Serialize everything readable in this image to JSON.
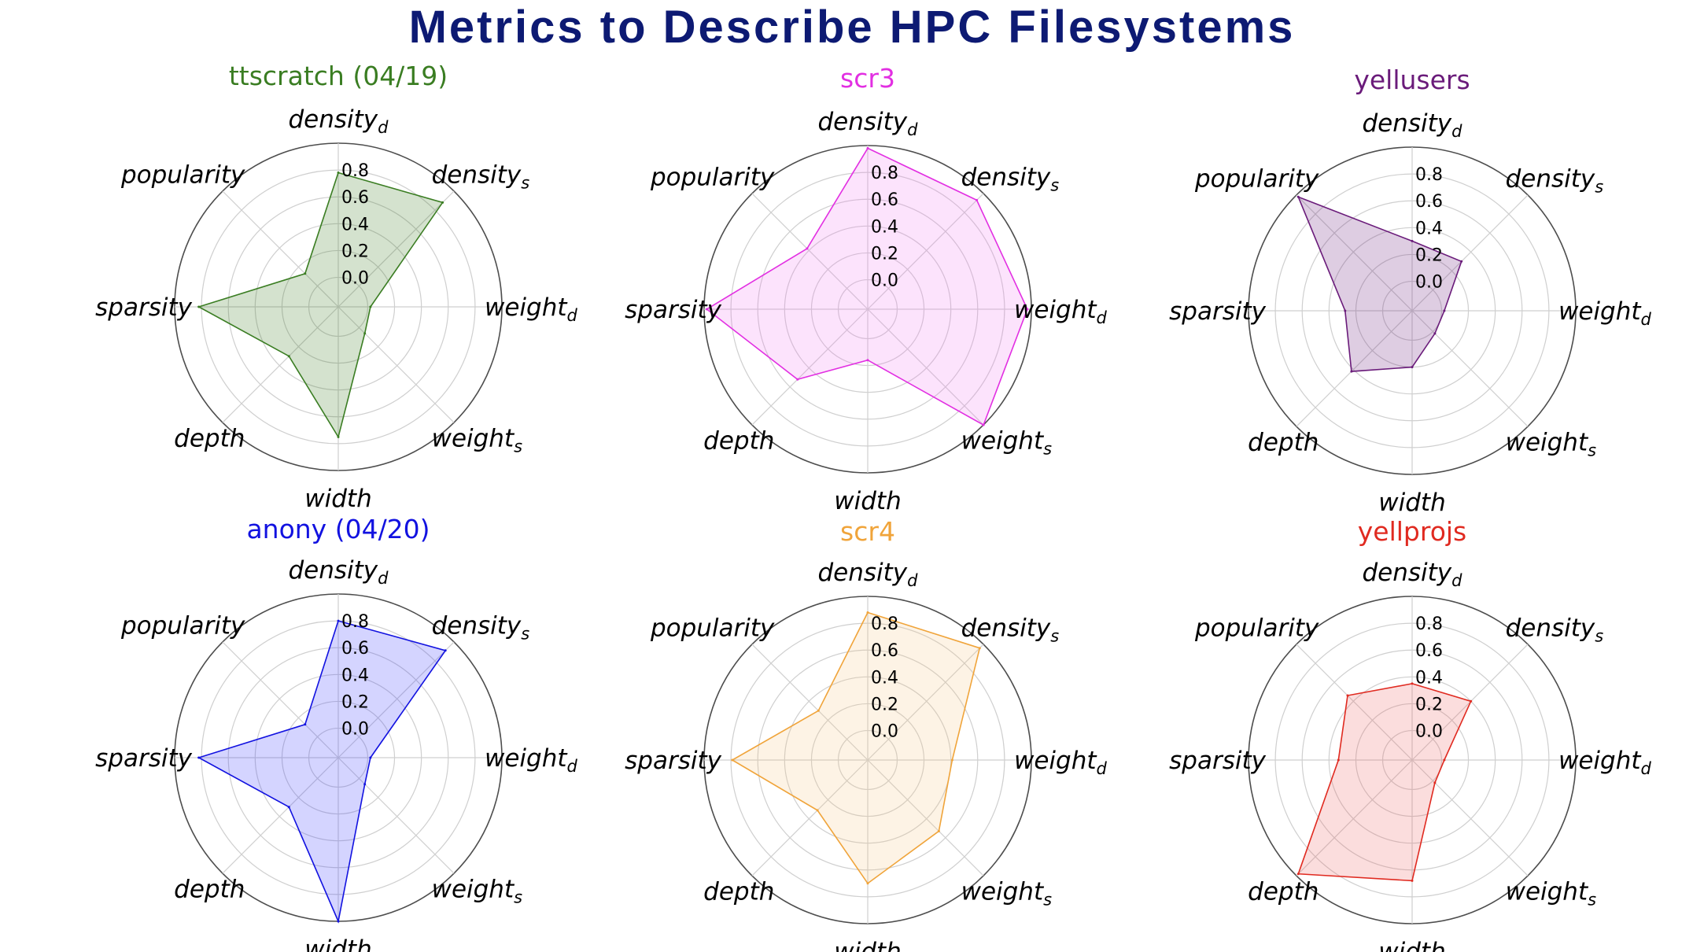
{
  "title": "Metrics to Describe HPC Filesystems",
  "colors": {
    "title": "#0d1a73",
    "outer_ring": "#4d4d4d",
    "grid": "#cfcfcf"
  },
  "chart_data": [
    {
      "type": "radar",
      "title": "ttscratch (04/19)",
      "color": "#3a7d22",
      "fill": "#3a7d22",
      "axes": [
        "density_d",
        "density_s",
        "weight_d",
        "weight_s",
        "width",
        "depth",
        "sparsity",
        "popularity"
      ],
      "axis_labels": [
        {
          "base": "density",
          "sub": "d"
        },
        {
          "base": "density",
          "sub": "s"
        },
        {
          "base": "weight",
          "sub": "d"
        },
        {
          "base": "weight",
          "sub": "s"
        },
        {
          "base": "width",
          "sub": ""
        },
        {
          "base": "depth",
          "sub": ""
        },
        {
          "base": "sparsity",
          "sub": ""
        },
        {
          "base": "popularity",
          "sub": ""
        }
      ],
      "ticks": [
        "0.0",
        "0.2",
        "0.4",
        "0.6",
        "0.8"
      ],
      "rmax": 1.0,
      "values": [
        0.78,
        0.88,
        0.02,
        0.06,
        0.75,
        0.3,
        0.82,
        0.13
      ]
    },
    {
      "type": "radar",
      "title": "scr3",
      "color": "#e22fe2",
      "fill": "#f07ef0",
      "axes": [
        "density_d",
        "density_s",
        "weight_d",
        "weight_s",
        "width",
        "depth",
        "sparsity",
        "popularity"
      ],
      "axis_labels": [
        {
          "base": "density",
          "sub": "d"
        },
        {
          "base": "density",
          "sub": "s"
        },
        {
          "base": "weight",
          "sub": "d"
        },
        {
          "base": "weight",
          "sub": "s"
        },
        {
          "base": "width",
          "sub": ""
        },
        {
          "base": "depth",
          "sub": ""
        },
        {
          "base": "sparsity",
          "sub": ""
        },
        {
          "base": "popularity",
          "sub": ""
        }
      ],
      "ticks": [
        "0.0",
        "0.2",
        "0.4",
        "0.6",
        "0.8"
      ],
      "rmax": 1.0,
      "values": [
        0.98,
        0.93,
        0.97,
        1.0,
        0.16,
        0.52,
        0.98,
        0.42
      ]
    },
    {
      "type": "radar",
      "title": "yellusers",
      "color": "#6a1b7a",
      "fill": "#6a1b7a",
      "axes": [
        "density_d",
        "density_s",
        "weight_d",
        "weight_s",
        "width",
        "depth",
        "sparsity",
        "popularity"
      ],
      "axis_labels": [
        {
          "base": "density",
          "sub": "d"
        },
        {
          "base": "density",
          "sub": "s"
        },
        {
          "base": "weight",
          "sub": "d"
        },
        {
          "base": "weight",
          "sub": "s"
        },
        {
          "base": "width",
          "sub": ""
        },
        {
          "base": "depth",
          "sub": ""
        },
        {
          "base": "sparsity",
          "sub": ""
        },
        {
          "base": "popularity",
          "sub": ""
        }
      ],
      "ticks": [
        "0.0",
        "0.2",
        "0.4",
        "0.6",
        "0.8"
      ],
      "rmax": 1.0,
      "values": [
        0.3,
        0.3,
        0.02,
        0.02,
        0.2,
        0.42,
        0.28,
        0.98
      ]
    },
    {
      "type": "radar",
      "title": "anony (04/20)",
      "color": "#1212e0",
      "fill": "#3b3bff",
      "axes": [
        "density_d",
        "density_s",
        "weight_d",
        "weight_s",
        "width",
        "depth",
        "sparsity",
        "popularity"
      ],
      "axis_labels": [
        {
          "base": "density",
          "sub": "d"
        },
        {
          "base": "density",
          "sub": "s"
        },
        {
          "base": "weight",
          "sub": "d"
        },
        {
          "base": "weight",
          "sub": "s"
        },
        {
          "base": "width",
          "sub": ""
        },
        {
          "base": "depth",
          "sub": ""
        },
        {
          "base": "sparsity",
          "sub": ""
        },
        {
          "base": "popularity",
          "sub": ""
        }
      ],
      "ticks": [
        "0.0",
        "0.2",
        "0.4",
        "0.6",
        "0.8"
      ],
      "rmax": 1.0,
      "values": [
        0.8,
        0.91,
        0.02,
        0.06,
        1.0,
        0.3,
        0.82,
        0.13
      ]
    },
    {
      "type": "radar",
      "title": "scr4",
      "color": "#f0a43a",
      "fill": "#f7c98a",
      "axes": [
        "density_d",
        "density_s",
        "weight_d",
        "weight_s",
        "width",
        "depth",
        "sparsity",
        "popularity"
      ],
      "axis_labels": [
        {
          "base": "density",
          "sub": "d"
        },
        {
          "base": "density",
          "sub": "s"
        },
        {
          "base": "weight",
          "sub": "d"
        },
        {
          "base": "weight",
          "sub": "s"
        },
        {
          "base": "width",
          "sub": ""
        },
        {
          "base": "depth",
          "sub": ""
        },
        {
          "base": "sparsity",
          "sub": ""
        },
        {
          "base": "popularity",
          "sub": ""
        }
      ],
      "ticks": [
        "0.0",
        "0.2",
        "0.4",
        "0.6",
        "0.8"
      ],
      "rmax": 1.0,
      "values": [
        0.88,
        0.96,
        0.41,
        0.53,
        0.7,
        0.31,
        0.79,
        0.3
      ]
    },
    {
      "type": "radar",
      "title": "yellprojs",
      "color": "#e02a20",
      "fill": "#ef6666",
      "axes": [
        "density_d",
        "density_s",
        "weight_d",
        "weight_s",
        "width",
        "depth",
        "sparsity",
        "popularity"
      ],
      "axis_labels": [
        {
          "base": "density",
          "sub": "d"
        },
        {
          "base": "density",
          "sub": "s"
        },
        {
          "base": "weight",
          "sub": "d"
        },
        {
          "base": "weight",
          "sub": "s"
        },
        {
          "base": "width",
          "sub": ""
        },
        {
          "base": "depth",
          "sub": ""
        },
        {
          "base": "sparsity",
          "sub": ""
        },
        {
          "base": "popularity",
          "sub": ""
        }
      ],
      "ticks": [
        "0.0",
        "0.2",
        "0.4",
        "0.6",
        "0.8"
      ],
      "rmax": 1.0,
      "values": [
        0.35,
        0.4,
        0.02,
        0.02,
        0.68,
        0.98,
        0.33,
        0.46
      ]
    }
  ]
}
